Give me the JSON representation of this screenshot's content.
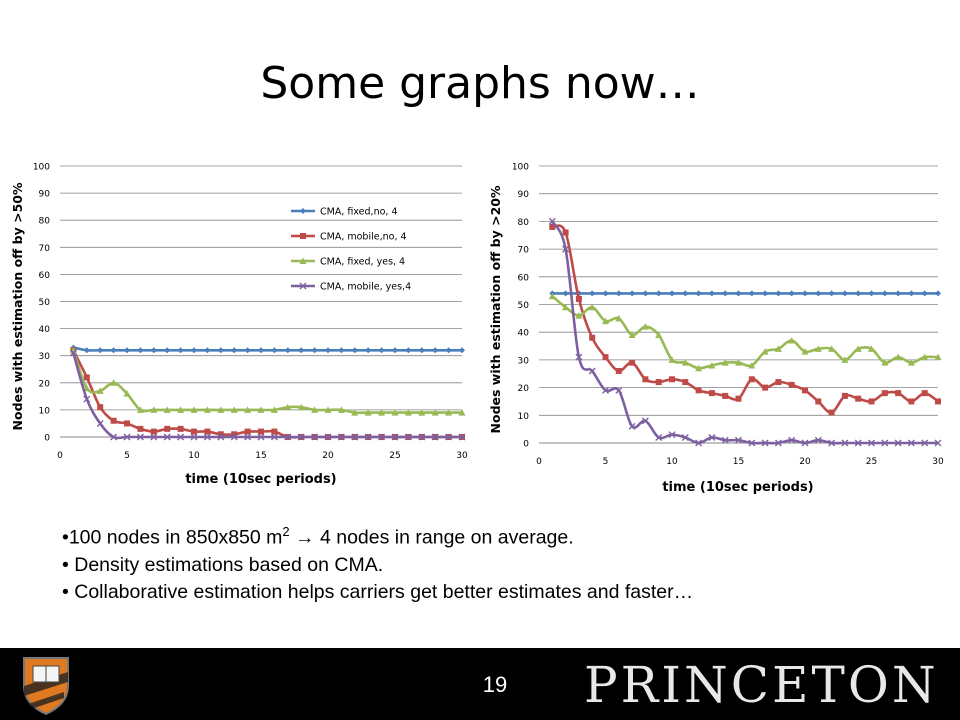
{
  "slide": {
    "title": "Some graphs now…",
    "bullets": [
      "•100 nodes in 850x850 m",
      "2",
      " → 4 nodes in range on average.",
      "• Density estimations based on CMA.",
      "• Collaborative estimation helps carriers get better estimates and faster…"
    ],
    "page_number": "19",
    "brand": "PRINCETON"
  },
  "colors": {
    "blue": "#4a7ebb",
    "red": "#be4b48",
    "green": "#98b954",
    "purple": "#7d60a0"
  },
  "chart_data": [
    {
      "type": "line",
      "ylabel": "Nodes with estimation off by >50%",
      "xlabel": "time (10sec periods)",
      "xlim": [
        0,
        30
      ],
      "ylim": [
        0,
        100
      ],
      "xticks": [
        0,
        5,
        10,
        15,
        20,
        25,
        30
      ],
      "yticks": [
        0,
        10,
        20,
        30,
        40,
        50,
        60,
        70,
        80,
        90,
        100
      ],
      "legend_position": "top-right",
      "x": [
        1,
        2,
        3,
        4,
        5,
        6,
        7,
        8,
        9,
        10,
        11,
        12,
        13,
        14,
        15,
        16,
        17,
        18,
        19,
        20,
        21,
        22,
        23,
        24,
        25,
        26,
        27,
        28,
        29,
        30
      ],
      "series": [
        {
          "name": "CMA, fixed,no, 4",
          "marker": "diamond",
          "values": [
            33,
            32,
            32,
            32,
            32,
            32,
            32,
            32,
            32,
            32,
            32,
            32,
            32,
            32,
            32,
            32,
            32,
            32,
            32,
            32,
            32,
            32,
            32,
            32,
            32,
            32,
            32,
            32,
            32,
            32
          ]
        },
        {
          "name": "CMA, mobile,no, 4",
          "marker": "square",
          "values": [
            32,
            22,
            11,
            6,
            5,
            3,
            2,
            3,
            3,
            2,
            2,
            1,
            1,
            2,
            2,
            2,
            0,
            0,
            0,
            0,
            0,
            0,
            0,
            0,
            0,
            0,
            0,
            0,
            0,
            0
          ]
        },
        {
          "name": "CMA, fixed, yes, 4",
          "marker": "triangle",
          "values": [
            32,
            18,
            17,
            20,
            16,
            10,
            10,
            10,
            10,
            10,
            10,
            10,
            10,
            10,
            10,
            10,
            11,
            11,
            10,
            10,
            10,
            9,
            9,
            9,
            9,
            9,
            9,
            9,
            9,
            9
          ]
        },
        {
          "name": "CMA, mobile, yes,4",
          "marker": "x",
          "values": [
            31,
            14,
            5,
            0,
            0,
            0,
            0,
            0,
            0,
            0,
            0,
            0,
            0,
            0,
            0,
            0,
            0,
            0,
            0,
            0,
            0,
            0,
            0,
            0,
            0,
            0,
            0,
            0,
            0,
            0
          ]
        }
      ]
    },
    {
      "type": "line",
      "ylabel": "Nodes with estimation off by >20%",
      "xlabel": "time (10sec periods)",
      "xlim": [
        0,
        30
      ],
      "ylim": [
        0,
        100
      ],
      "xticks": [
        0,
        5,
        10,
        15,
        20,
        25,
        30
      ],
      "yticks": [
        0,
        10,
        20,
        30,
        40,
        50,
        60,
        70,
        80,
        90,
        100
      ],
      "x": [
        1,
        2,
        3,
        4,
        5,
        6,
        7,
        8,
        9,
        10,
        11,
        12,
        13,
        14,
        15,
        16,
        17,
        18,
        19,
        20,
        21,
        22,
        23,
        24,
        25,
        26,
        27,
        28,
        29,
        30
      ],
      "series": [
        {
          "marker": "diamond",
          "values": [
            54,
            54,
            54,
            54,
            54,
            54,
            54,
            54,
            54,
            54,
            54,
            54,
            54,
            54,
            54,
            54,
            54,
            54,
            54,
            54,
            54,
            54,
            54,
            54,
            54,
            54,
            54,
            54,
            54,
            54
          ]
        },
        {
          "marker": "square",
          "values": [
            78,
            76,
            52,
            38,
            31,
            26,
            29,
            23,
            22,
            23,
            22,
            19,
            18,
            17,
            16,
            23,
            20,
            22,
            21,
            19,
            15,
            11,
            17,
            16,
            15,
            18,
            18,
            15,
            18,
            15
          ]
        },
        {
          "marker": "triangle",
          "values": [
            53,
            49,
            46,
            49,
            44,
            45,
            39,
            42,
            39,
            30,
            29,
            27,
            28,
            29,
            29,
            28,
            33,
            34,
            37,
            33,
            34,
            34,
            30,
            34,
            34,
            29,
            31,
            29,
            31,
            31
          ]
        },
        {
          "marker": "x",
          "values": [
            80,
            70,
            31,
            26,
            19,
            19,
            6,
            8,
            2,
            3,
            2,
            0,
            2,
            1,
            1,
            0,
            0,
            0,
            1,
            0,
            1,
            0,
            0,
            0,
            0,
            0,
            0,
            0,
            0,
            0
          ]
        }
      ]
    }
  ]
}
